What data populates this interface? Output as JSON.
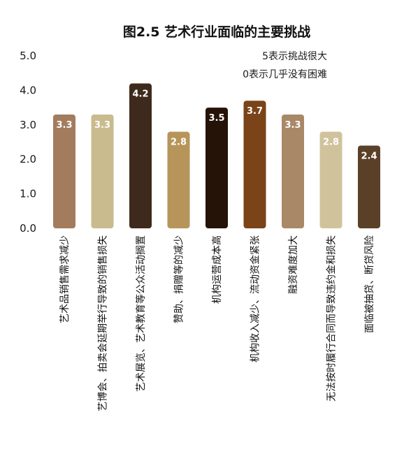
{
  "chart_data": {
    "type": "bar",
    "title": "图2.5  艺术行业面临的主要挑战",
    "notes": [
      "5表示挑战很大",
      "0表示几乎没有困难"
    ],
    "ylim": [
      0,
      5
    ],
    "yticks": [
      "0.0",
      "1.0",
      "2.0",
      "3.0",
      "4.0",
      "5.0"
    ],
    "grid": false,
    "legend": "none",
    "categories": [
      "艺术品销售需求减少",
      "艺博会、拍卖会延期举行导致的销售损失",
      "艺术展览、艺术教育等公众活动搁置",
      "赞助、捐赠等的减少",
      "机构运营成本高",
      "机构收入减少、流动资金紧张",
      "融资难度加大",
      "无法按时履行合同而导致违约金和损失",
      "面临被抽贷、断贷风险"
    ],
    "values": [
      3.3,
      3.3,
      4.2,
      2.8,
      3.5,
      3.7,
      3.3,
      2.8,
      2.4
    ],
    "value_labels": [
      "3.3",
      "3.3",
      "4.2",
      "2.8",
      "3.5",
      "3.7",
      "3.3",
      "2.8",
      "2.4"
    ],
    "bar_colors": [
      "#A37C5E",
      "#C9BB8D",
      "#3E2A1C",
      "#B7955A",
      "#241306",
      "#7A4318",
      "#A98867",
      "#D0C39C",
      "#5B4028"
    ]
  }
}
